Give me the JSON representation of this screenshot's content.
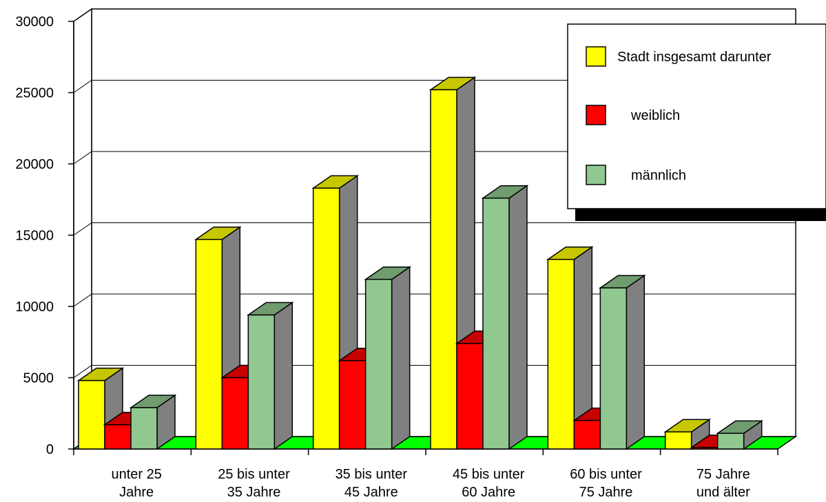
{
  "chart_data": {
    "type": "bar",
    "title": "",
    "xlabel": "",
    "ylabel": "",
    "ylim": [
      0,
      30000
    ],
    "yticks": [
      0,
      5000,
      10000,
      15000,
      20000,
      25000,
      30000
    ],
    "grid": true,
    "legend_position": "top-right",
    "categories": [
      [
        "unter 25",
        "Jahre"
      ],
      [
        "25 bis unter",
        "35 Jahre"
      ],
      [
        "35 bis unter",
        "45 Jahre"
      ],
      [
        "45 bis unter",
        "60 Jahre"
      ],
      [
        "60 bis unter",
        "75 Jahre"
      ],
      [
        "75 Jahre",
        "und älter"
      ]
    ],
    "series": [
      {
        "name": "Stadt insgesamt darunter",
        "color": "#ffff00",
        "values": [
          4800,
          14700,
          18300,
          25200,
          13300,
          1200
        ]
      },
      {
        "name": "weiblich",
        "color": "#ff0000",
        "values": [
          1700,
          5000,
          6200,
          7400,
          2000,
          100
        ]
      },
      {
        "name": "männlich",
        "color": "#90c890",
        "values": [
          2900,
          9400,
          11900,
          17600,
          11300,
          1100
        ]
      }
    ],
    "floor_color": "#00ff00",
    "side_color": "#808080"
  }
}
